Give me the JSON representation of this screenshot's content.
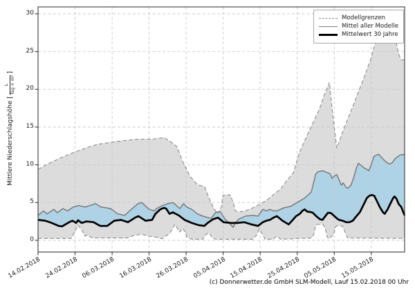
{
  "figure": {
    "footer": "(c) Donnerwetter.de GmbH SLM-Modell, Lauf 15.02.2018 00 Uhr"
  },
  "axes": {
    "ylabel_prefix": "Mittlere Niederschlagshöhe [",
    "ylabel_unit_numerator": "L",
    "ylabel_unit_denominator": "Tag × m²",
    "ylabel_suffix": "]",
    "y_ticks": [
      0,
      5,
      10,
      15,
      20,
      25,
      30
    ],
    "x_ticks": [
      "14.02.2018",
      "24.02.2018",
      "06.03.2018",
      "16.03.2018",
      "26.03.2018",
      "05.04.2018",
      "15.04.2018",
      "25.04.2018",
      "05.05.2018",
      "15.05.2018"
    ],
    "x_tick_day_offsets": [
      0,
      10,
      20,
      30,
      40,
      50,
      60,
      70,
      80,
      90
    ]
  },
  "legend": {
    "position": "upper right",
    "items": [
      {
        "label": "Modellgrenzen",
        "style": "dashed-gray"
      },
      {
        "label": "Mittel aller Modelle",
        "style": "solid-gray"
      },
      {
        "label": "Mittelwert 30 Jahre",
        "style": "solid-black"
      }
    ]
  },
  "colors": {
    "band_fill": "#dcdcdc",
    "bound_line": "#8c8c8c",
    "model_mean_line": "#7a7a7a",
    "climate_mean_line": "#000000",
    "above_fill": "#aed3e6",
    "below_fill": "#f3c7b5",
    "grid": "#c8c8c8",
    "spine": "#262626",
    "text": "#1a1a1a",
    "background": "#ffffff"
  },
  "chart_data": {
    "type": "line",
    "title": "",
    "xlabel": "",
    "ylabel": "Mittlere Niederschlagshöhe [L/(Tag × m²)]",
    "x_unit": "Tage seit 14.02.2018",
    "xlim_days": [
      0,
      99
    ],
    "ylim": [
      -1.6,
      30.9
    ],
    "grid": true,
    "legend_position": "upper right",
    "fills": [
      {
        "between": [
          "upper_bound",
          "lower_bound"
        ],
        "color": "#dcdcdc",
        "label": "Modellgrenzen-Band"
      },
      {
        "between": [
          "model_mean",
          "climate_mean"
        ],
        "color_above": "#aed3e6",
        "color_below": "#f3c7b5"
      }
    ],
    "series": [
      {
        "name": "Modellgrenzen (obere Grenze)",
        "role": "upper_bound",
        "line": "dashed",
        "points": [
          [
            0,
            9.4
          ],
          [
            3,
            10.2
          ],
          [
            6.5,
            11.0
          ],
          [
            10,
            11.7
          ],
          [
            14,
            12.4
          ],
          [
            16,
            12.7
          ],
          [
            20,
            13.0
          ],
          [
            23,
            13.2
          ],
          [
            27,
            13.4
          ],
          [
            31,
            13.4
          ],
          [
            34,
            13.6
          ],
          [
            36,
            13.0
          ],
          [
            37.5,
            12.4
          ],
          [
            39,
            10.5
          ],
          [
            41,
            8.5
          ],
          [
            43,
            7.4
          ],
          [
            45,
            7.1
          ],
          [
            46,
            5.8
          ],
          [
            47.3,
            4.4
          ],
          [
            48.5,
            3.5
          ],
          [
            49.5,
            4.4
          ],
          [
            49.9,
            5.9
          ],
          [
            50.1,
            6.0
          ],
          [
            51.9,
            6.0
          ],
          [
            52.7,
            5.0
          ],
          [
            53.3,
            3.9
          ],
          [
            54.2,
            3.75
          ],
          [
            56,
            3.9
          ],
          [
            58,
            4.3
          ],
          [
            60,
            4.8
          ],
          [
            62,
            5.4
          ],
          [
            63.5,
            6.0
          ],
          [
            65.5,
            6.8
          ],
          [
            67,
            7.8
          ],
          [
            69,
            9.0
          ],
          [
            70.5,
            11.5
          ],
          [
            72,
            13.2
          ],
          [
            74,
            15.3
          ],
          [
            76,
            17.4
          ],
          [
            77.5,
            19.5
          ],
          [
            78.7,
            20.9
          ],
          [
            79.5,
            17.0
          ],
          [
            80.7,
            12.2
          ],
          [
            82,
            14.0
          ],
          [
            84,
            16.5
          ],
          [
            86,
            19.0
          ],
          [
            88,
            21.5
          ],
          [
            90,
            24.2
          ],
          [
            91,
            26.0
          ],
          [
            92.1,
            27.3
          ],
          [
            93.3,
            28.0
          ],
          [
            94.5,
            27.6
          ],
          [
            95.7,
            26.8
          ],
          [
            96.8,
            26.0
          ],
          [
            97.5,
            24.5
          ],
          [
            98.1,
            23.9
          ],
          [
            99,
            23.9
          ]
        ]
      },
      {
        "name": "Modellgrenzen (untere Grenze)",
        "role": "lower_bound",
        "line": "dashed",
        "points": [
          [
            0,
            0.25
          ],
          [
            9,
            0.25
          ],
          [
            10,
            1.2
          ],
          [
            10.8,
            2.0
          ],
          [
            11.8,
            1.4
          ],
          [
            12.7,
            0.55
          ],
          [
            13.3,
            0.7
          ],
          [
            14,
            0.45
          ],
          [
            15,
            0.3
          ],
          [
            24,
            0.3
          ],
          [
            26,
            0.65
          ],
          [
            28,
            0.8
          ],
          [
            30,
            0.55
          ],
          [
            32,
            0.4
          ],
          [
            33.5,
            0.2
          ],
          [
            35.5,
            0.9
          ],
          [
            36.4,
            1.6
          ],
          [
            37,
            2.1
          ],
          [
            37.8,
            1.4
          ],
          [
            38.3,
            1.1
          ],
          [
            39,
            1.6
          ],
          [
            39.6,
            1.2
          ],
          [
            40.2,
            0.45
          ],
          [
            41.5,
            0.15
          ],
          [
            44.5,
            0.15
          ],
          [
            45.4,
            0.8
          ],
          [
            46.2,
            1.0
          ],
          [
            47,
            0.35
          ],
          [
            48,
            0.15
          ],
          [
            58,
            0.15
          ],
          [
            59,
            0.7
          ],
          [
            59.8,
            1.5
          ],
          [
            60.7,
            0.7
          ],
          [
            61.3,
            0.15
          ],
          [
            63.5,
            0.15
          ],
          [
            64.5,
            0.55
          ],
          [
            65.5,
            0.15
          ],
          [
            73.8,
            0.3
          ],
          [
            74.4,
            0.7
          ],
          [
            75,
            1.9
          ],
          [
            75.3,
            2.1
          ],
          [
            77,
            2.1
          ],
          [
            77.6,
            1.5
          ],
          [
            78.1,
            0.45
          ],
          [
            78.5,
            0.2
          ],
          [
            79.8,
            0.7
          ],
          [
            80.4,
            1.8
          ],
          [
            80.6,
            1.9
          ],
          [
            82.2,
            1.9
          ],
          [
            82.8,
            1.2
          ],
          [
            83.6,
            0.3
          ],
          [
            99,
            0.25
          ]
        ]
      },
      {
        "name": "Mittel aller Modelle",
        "role": "model_mean",
        "line": "solid",
        "points": [
          [
            0,
            3.3
          ],
          [
            1.5,
            3.9
          ],
          [
            2.4,
            3.5
          ],
          [
            4.3,
            4.1
          ],
          [
            5.2,
            3.65
          ],
          [
            6.7,
            4.2
          ],
          [
            8,
            3.9
          ],
          [
            9.5,
            4.4
          ],
          [
            11,
            4.6
          ],
          [
            12.7,
            4.4
          ],
          [
            14,
            4.6
          ],
          [
            15.5,
            4.85
          ],
          [
            17,
            4.4
          ],
          [
            18.5,
            4.3
          ],
          [
            19.6,
            4.2
          ],
          [
            21.5,
            3.5
          ],
          [
            23.4,
            3.3
          ],
          [
            25.2,
            4.1
          ],
          [
            27,
            4.85
          ],
          [
            28,
            5.0
          ],
          [
            30,
            4.1
          ],
          [
            31.4,
            3.9
          ],
          [
            32,
            4.2
          ],
          [
            33.6,
            4.6
          ],
          [
            35,
            4.85
          ],
          [
            36.4,
            5.0
          ],
          [
            37.4,
            4.6
          ],
          [
            38.3,
            4.2
          ],
          [
            39.3,
            4.85
          ],
          [
            40.2,
            4.4
          ],
          [
            41.5,
            4.1
          ],
          [
            43,
            3.5
          ],
          [
            44.5,
            3.2
          ],
          [
            46.7,
            2.9
          ],
          [
            48,
            3.7
          ],
          [
            49.2,
            3.8
          ],
          [
            50.5,
            2.8
          ],
          [
            51.4,
            2.4
          ],
          [
            52.7,
            1.7
          ],
          [
            53.3,
            2.3
          ],
          [
            54.2,
            2.8
          ],
          [
            56,
            3.2
          ],
          [
            58,
            3.3
          ],
          [
            59.4,
            3.2
          ],
          [
            60.7,
            4.1
          ],
          [
            61.7,
            3.9
          ],
          [
            62.6,
            4.1
          ],
          [
            63.6,
            3.9
          ],
          [
            64.5,
            3.9
          ],
          [
            66.4,
            4.3
          ],
          [
            68.2,
            4.5
          ],
          [
            70,
            5.0
          ],
          [
            72,
            5.6
          ],
          [
            73.8,
            6.4
          ],
          [
            75,
            8.8
          ],
          [
            75.7,
            9.1
          ],
          [
            77,
            9.2
          ],
          [
            78.9,
            8.8
          ],
          [
            79.4,
            8.2
          ],
          [
            80.2,
            8.6
          ],
          [
            80.7,
            8.7
          ],
          [
            81.9,
            7.3
          ],
          [
            82.4,
            7.6
          ],
          [
            83.2,
            7.0
          ],
          [
            83.7,
            6.9
          ],
          [
            84.5,
            7.3
          ],
          [
            85.2,
            8.2
          ],
          [
            86,
            9.6
          ],
          [
            86.5,
            10.2
          ],
          [
            87.3,
            9.9
          ],
          [
            88,
            9.6
          ],
          [
            88.8,
            9.4
          ],
          [
            89.3,
            9.2
          ],
          [
            89.9,
            9.9
          ],
          [
            90.7,
            11.1
          ],
          [
            91.4,
            11.3
          ],
          [
            92,
            11.4
          ],
          [
            92.7,
            11.0
          ],
          [
            93.5,
            10.6
          ],
          [
            94.2,
            10.3
          ],
          [
            95,
            10.1
          ],
          [
            95.7,
            10.3
          ],
          [
            96.4,
            10.8
          ],
          [
            97.2,
            11.1
          ],
          [
            97.8,
            11.3
          ],
          [
            99,
            11.4
          ]
        ]
      },
      {
        "name": "Mittelwert 30 Jahre",
        "role": "climate_mean",
        "line": "solid-thick",
        "points": [
          [
            0,
            2.7
          ],
          [
            1.9,
            2.6
          ],
          [
            3.7,
            2.3
          ],
          [
            5.6,
            1.9
          ],
          [
            6.5,
            1.85
          ],
          [
            8.4,
            2.4
          ],
          [
            9.3,
            2.6
          ],
          [
            10.3,
            2.3
          ],
          [
            10.8,
            2.65
          ],
          [
            11.8,
            2.3
          ],
          [
            13.1,
            2.5
          ],
          [
            15,
            2.4
          ],
          [
            16.8,
            1.9
          ],
          [
            18.7,
            1.9
          ],
          [
            20.6,
            2.6
          ],
          [
            22.4,
            2.7
          ],
          [
            24.3,
            2.4
          ],
          [
            26.2,
            3.0
          ],
          [
            27.1,
            3.2
          ],
          [
            29,
            2.6
          ],
          [
            30.8,
            2.7
          ],
          [
            31.7,
            3.5
          ],
          [
            33,
            4.1
          ],
          [
            34,
            4.3
          ],
          [
            34.6,
            4.2
          ],
          [
            35.5,
            3.5
          ],
          [
            36.4,
            3.7
          ],
          [
            38,
            3.3
          ],
          [
            39.6,
            2.7
          ],
          [
            41.5,
            2.3
          ],
          [
            43.4,
            2.0
          ],
          [
            44.9,
            1.9
          ],
          [
            45.8,
            2.3
          ],
          [
            47.3,
            2.8
          ],
          [
            48.6,
            3.0
          ],
          [
            50.1,
            2.4
          ],
          [
            52,
            2.3
          ],
          [
            53.8,
            2.3
          ],
          [
            55.7,
            2.4
          ],
          [
            57.6,
            2.1
          ],
          [
            59.4,
            1.9
          ],
          [
            60.7,
            2.4
          ],
          [
            61.7,
            2.6
          ],
          [
            62.6,
            2.7
          ],
          [
            63.6,
            3.0
          ],
          [
            64.5,
            3.2
          ],
          [
            66,
            2.6
          ],
          [
            67.7,
            2.1
          ],
          [
            68.6,
            2.6
          ],
          [
            69.7,
            3.2
          ],
          [
            70.7,
            3.5
          ],
          [
            71.4,
            3.9
          ],
          [
            72,
            4.1
          ],
          [
            72.7,
            3.8
          ],
          [
            73.5,
            3.75
          ],
          [
            74.2,
            3.65
          ],
          [
            75.1,
            3.2
          ],
          [
            76.1,
            2.8
          ],
          [
            76.8,
            2.7
          ],
          [
            77.6,
            3.2
          ],
          [
            78.3,
            3.65
          ],
          [
            79.1,
            3.6
          ],
          [
            79.8,
            3.3
          ],
          [
            80.7,
            2.9
          ],
          [
            81.3,
            2.7
          ],
          [
            82.2,
            2.6
          ],
          [
            83.2,
            2.4
          ],
          [
            84.1,
            2.4
          ],
          [
            85,
            2.6
          ],
          [
            86,
            3.2
          ],
          [
            86.9,
            3.7
          ],
          [
            87.9,
            4.7
          ],
          [
            88.8,
            5.6
          ],
          [
            89.5,
            5.9
          ],
          [
            90.1,
            6.0
          ],
          [
            90.8,
            5.9
          ],
          [
            91.6,
            5.1
          ],
          [
            92.3,
            4.4
          ],
          [
            93.1,
            3.75
          ],
          [
            93.6,
            3.5
          ],
          [
            94.4,
            4.1
          ],
          [
            95.1,
            4.8
          ],
          [
            95.9,
            5.6
          ],
          [
            96.3,
            5.8
          ],
          [
            96.8,
            5.5
          ],
          [
            97.4,
            4.8
          ],
          [
            98.1,
            4.4
          ],
          [
            98.7,
            3.65
          ],
          [
            99,
            3.3
          ]
        ]
      }
    ]
  }
}
